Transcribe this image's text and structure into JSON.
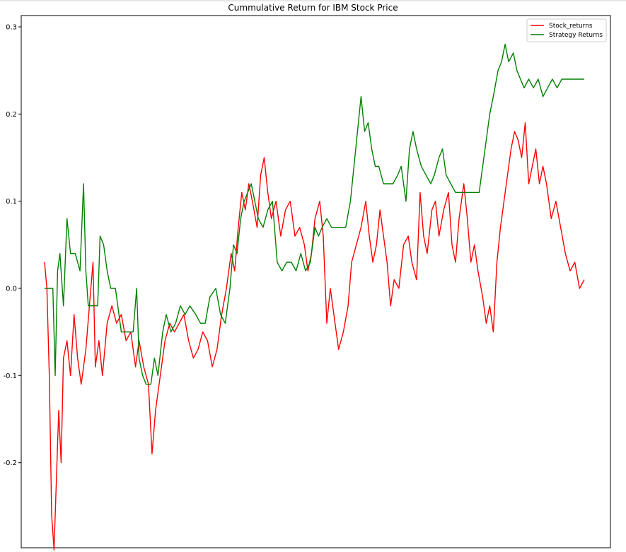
{
  "chart_data": {
    "type": "line",
    "title": "Cummulative Return for IBM Stock Price",
    "xlabel": "",
    "ylabel": "",
    "ylim": [
      -0.3,
      0.31
    ],
    "xlim": [
      0,
      1000
    ],
    "y_ticks": [
      {
        "value": 0.3,
        "label": "0.3"
      },
      {
        "value": 0.2,
        "label": "0.2"
      },
      {
        "value": 0.1,
        "label": "0.1"
      },
      {
        "value": 0.0,
        "label": "0.0"
      },
      {
        "value": -0.1,
        "label": "-0.1"
      },
      {
        "value": -0.2,
        "label": "-0.2"
      }
    ],
    "grid": false,
    "legend_position": "top-right",
    "series": [
      {
        "name": "Stock_returns",
        "color": "#ff0000",
        "points": [
          [
            0,
            0.03
          ],
          [
            4,
            0.0
          ],
          [
            8,
            -0.1
          ],
          [
            12,
            -0.26
          ],
          [
            16,
            -0.3
          ],
          [
            20,
            -0.22
          ],
          [
            24,
            -0.14
          ],
          [
            28,
            -0.2
          ],
          [
            32,
            -0.08
          ],
          [
            38,
            -0.06
          ],
          [
            44,
            -0.1
          ],
          [
            50,
            -0.03
          ],
          [
            56,
            -0.08
          ],
          [
            62,
            -0.11
          ],
          [
            70,
            -0.07
          ],
          [
            76,
            -0.02
          ],
          [
            82,
            0.03
          ],
          [
            86,
            -0.09
          ],
          [
            92,
            -0.06
          ],
          [
            98,
            -0.1
          ],
          [
            106,
            -0.04
          ],
          [
            114,
            -0.02
          ],
          [
            122,
            -0.04
          ],
          [
            130,
            -0.03
          ],
          [
            138,
            -0.06
          ],
          [
            146,
            -0.05
          ],
          [
            154,
            -0.09
          ],
          [
            160,
            -0.06
          ],
          [
            168,
            -0.09
          ],
          [
            176,
            -0.11
          ],
          [
            182,
            -0.19
          ],
          [
            188,
            -0.14
          ],
          [
            196,
            -0.1
          ],
          [
            204,
            -0.06
          ],
          [
            212,
            -0.04
          ],
          [
            220,
            -0.05
          ],
          [
            228,
            -0.04
          ],
          [
            236,
            -0.03
          ],
          [
            244,
            -0.06
          ],
          [
            252,
            -0.08
          ],
          [
            260,
            -0.07
          ],
          [
            268,
            -0.05
          ],
          [
            276,
            -0.06
          ],
          [
            284,
            -0.09
          ],
          [
            292,
            -0.07
          ],
          [
            300,
            -0.03
          ],
          [
            308,
            0.0
          ],
          [
            316,
            0.04
          ],
          [
            322,
            0.02
          ],
          [
            328,
            0.07
          ],
          [
            334,
            0.11
          ],
          [
            340,
            0.09
          ],
          [
            346,
            0.12
          ],
          [
            352,
            0.1
          ],
          [
            360,
            0.07
          ],
          [
            366,
            0.13
          ],
          [
            372,
            0.15
          ],
          [
            378,
            0.11
          ],
          [
            384,
            0.08
          ],
          [
            392,
            0.1
          ],
          [
            400,
            0.06
          ],
          [
            408,
            0.09
          ],
          [
            416,
            0.1
          ],
          [
            424,
            0.06
          ],
          [
            432,
            0.07
          ],
          [
            440,
            0.05
          ],
          [
            446,
            0.02
          ],
          [
            452,
            0.04
          ],
          [
            458,
            0.08
          ],
          [
            466,
            0.1
          ],
          [
            472,
            0.06
          ],
          [
            478,
            -0.04
          ],
          [
            484,
            0.0
          ],
          [
            490,
            -0.03
          ],
          [
            498,
            -0.07
          ],
          [
            506,
            -0.05
          ],
          [
            514,
            -0.02
          ],
          [
            520,
            0.03
          ],
          [
            528,
            0.05
          ],
          [
            536,
            0.07
          ],
          [
            544,
            0.1
          ],
          [
            550,
            0.06
          ],
          [
            556,
            0.03
          ],
          [
            562,
            0.05
          ],
          [
            568,
            0.09
          ],
          [
            574,
            0.06
          ],
          [
            580,
            0.03
          ],
          [
            586,
            -0.02
          ],
          [
            592,
            0.01
          ],
          [
            600,
            0.0
          ],
          [
            608,
            0.05
          ],
          [
            616,
            0.06
          ],
          [
            622,
            0.03
          ],
          [
            630,
            0.01
          ],
          [
            636,
            0.11
          ],
          [
            642,
            0.06
          ],
          [
            648,
            0.04
          ],
          [
            656,
            0.09
          ],
          [
            662,
            0.1
          ],
          [
            668,
            0.06
          ],
          [
            676,
            0.09
          ],
          [
            684,
            0.11
          ],
          [
            690,
            0.05
          ],
          [
            696,
            0.03
          ],
          [
            702,
            0.08
          ],
          [
            710,
            0.12
          ],
          [
            716,
            0.08
          ],
          [
            722,
            0.03
          ],
          [
            728,
            0.05
          ],
          [
            734,
            0.02
          ],
          [
            742,
            -0.01
          ],
          [
            748,
            -0.04
          ],
          [
            754,
            -0.02
          ],
          [
            760,
            -0.05
          ],
          [
            766,
            0.03
          ],
          [
            772,
            0.07
          ],
          [
            778,
            0.1
          ],
          [
            784,
            0.13
          ],
          [
            790,
            0.16
          ],
          [
            796,
            0.18
          ],
          [
            802,
            0.17
          ],
          [
            808,
            0.15
          ],
          [
            814,
            0.19
          ],
          [
            820,
            0.12
          ],
          [
            826,
            0.14
          ],
          [
            832,
            0.16
          ],
          [
            838,
            0.12
          ],
          [
            844,
            0.14
          ],
          [
            850,
            0.12
          ],
          [
            858,
            0.08
          ],
          [
            866,
            0.1
          ],
          [
            874,
            0.07
          ],
          [
            882,
            0.04
          ],
          [
            890,
            0.02
          ],
          [
            898,
            0.03
          ],
          [
            906,
            0.0
          ],
          [
            914,
            0.01
          ]
        ]
      },
      {
        "name": "Strategy Returns",
        "color": "#008000",
        "points": [
          [
            0,
            0.0
          ],
          [
            14,
            0.0
          ],
          [
            18,
            -0.1
          ],
          [
            22,
            0.02
          ],
          [
            26,
            0.04
          ],
          [
            32,
            -0.02
          ],
          [
            38,
            0.08
          ],
          [
            44,
            0.04
          ],
          [
            52,
            0.04
          ],
          [
            60,
            0.02
          ],
          [
            66,
            0.12
          ],
          [
            70,
            0.02
          ],
          [
            74,
            -0.02
          ],
          [
            90,
            -0.02
          ],
          [
            94,
            0.06
          ],
          [
            100,
            0.05
          ],
          [
            106,
            0.02
          ],
          [
            112,
            0.0
          ],
          [
            120,
            0.0
          ],
          [
            130,
            -0.05
          ],
          [
            150,
            -0.05
          ],
          [
            156,
            0.0
          ],
          [
            160,
            -0.08
          ],
          [
            166,
            -0.1
          ],
          [
            172,
            -0.11
          ],
          [
            180,
            -0.11
          ],
          [
            186,
            -0.08
          ],
          [
            192,
            -0.1
          ],
          [
            200,
            -0.05
          ],
          [
            206,
            -0.03
          ],
          [
            214,
            -0.05
          ],
          [
            222,
            -0.04
          ],
          [
            230,
            -0.02
          ],
          [
            238,
            -0.03
          ],
          [
            246,
            -0.02
          ],
          [
            256,
            -0.03
          ],
          [
            264,
            -0.04
          ],
          [
            272,
            -0.04
          ],
          [
            280,
            -0.01
          ],
          [
            290,
            0.0
          ],
          [
            298,
            -0.03
          ],
          [
            306,
            -0.04
          ],
          [
            314,
            0.0
          ],
          [
            320,
            0.05
          ],
          [
            326,
            0.04
          ],
          [
            332,
            0.08
          ],
          [
            338,
            0.1
          ],
          [
            344,
            0.11
          ],
          [
            350,
            0.12
          ],
          [
            356,
            0.1
          ],
          [
            362,
            0.08
          ],
          [
            370,
            0.07
          ],
          [
            378,
            0.09
          ],
          [
            386,
            0.1
          ],
          [
            394,
            0.03
          ],
          [
            402,
            0.02
          ],
          [
            410,
            0.03
          ],
          [
            418,
            0.03
          ],
          [
            426,
            0.02
          ],
          [
            434,
            0.04
          ],
          [
            442,
            0.02
          ],
          [
            450,
            0.03
          ],
          [
            458,
            0.07
          ],
          [
            464,
            0.06
          ],
          [
            470,
            0.07
          ],
          [
            478,
            0.08
          ],
          [
            486,
            0.07
          ],
          [
            494,
            0.07
          ],
          [
            502,
            0.07
          ],
          [
            510,
            0.07
          ],
          [
            518,
            0.1
          ],
          [
            524,
            0.14
          ],
          [
            530,
            0.18
          ],
          [
            536,
            0.22
          ],
          [
            542,
            0.18
          ],
          [
            548,
            0.19
          ],
          [
            554,
            0.16
          ],
          [
            560,
            0.14
          ],
          [
            566,
            0.14
          ],
          [
            574,
            0.12
          ],
          [
            582,
            0.12
          ],
          [
            590,
            0.12
          ],
          [
            598,
            0.13
          ],
          [
            604,
            0.14
          ],
          [
            612,
            0.1
          ],
          [
            618,
            0.16
          ],
          [
            624,
            0.18
          ],
          [
            630,
            0.16
          ],
          [
            638,
            0.14
          ],
          [
            646,
            0.13
          ],
          [
            654,
            0.12
          ],
          [
            660,
            0.13
          ],
          [
            668,
            0.15
          ],
          [
            674,
            0.16
          ],
          [
            680,
            0.13
          ],
          [
            688,
            0.12
          ],
          [
            696,
            0.11
          ],
          [
            704,
            0.11
          ],
          [
            712,
            0.11
          ],
          [
            720,
            0.11
          ],
          [
            728,
            0.11
          ],
          [
            736,
            0.11
          ],
          [
            742,
            0.14
          ],
          [
            748,
            0.17
          ],
          [
            754,
            0.2
          ],
          [
            760,
            0.22
          ],
          [
            768,
            0.25
          ],
          [
            774,
            0.26
          ],
          [
            780,
            0.28
          ],
          [
            786,
            0.26
          ],
          [
            794,
            0.27
          ],
          [
            800,
            0.25
          ],
          [
            806,
            0.24
          ],
          [
            812,
            0.23
          ],
          [
            820,
            0.24
          ],
          [
            828,
            0.23
          ],
          [
            836,
            0.24
          ],
          [
            844,
            0.22
          ],
          [
            852,
            0.23
          ],
          [
            860,
            0.24
          ],
          [
            868,
            0.23
          ],
          [
            876,
            0.24
          ],
          [
            884,
            0.24
          ],
          [
            896,
            0.24
          ],
          [
            914,
            0.24
          ]
        ]
      }
    ]
  }
}
